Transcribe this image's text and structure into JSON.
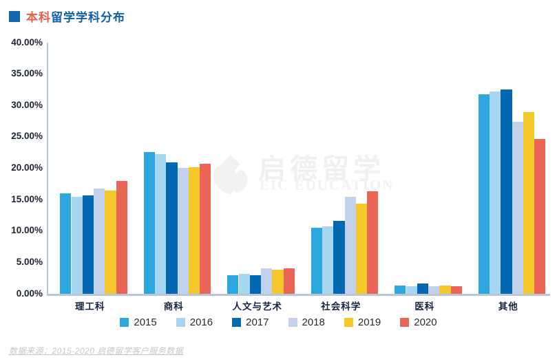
{
  "title": {
    "highlight": "本科",
    "rest": "留学学科分布",
    "highlight_color": "#E7604E",
    "rest_color": "#0E61A9",
    "square_color": "#1565B0"
  },
  "colors": {
    "axis_line": "#b5c8da",
    "watermark": "#f1f1f1",
    "ytick_text": "#1c2430",
    "xlabel_text": "#16233f"
  },
  "chart_data": {
    "type": "bar",
    "title": "本科留学学科分布",
    "categories": [
      "理工科",
      "商科",
      "人文与艺术",
      "社会科学",
      "医科",
      "其他"
    ],
    "series": [
      {
        "name": "2015",
        "color": "#2EA7DF",
        "values": [
          16.0,
          22.6,
          3.0,
          10.5,
          1.3,
          31.8
        ]
      },
      {
        "name": "2016",
        "color": "#A7D6F1",
        "values": [
          15.5,
          22.3,
          3.2,
          10.7,
          1.2,
          32.2
        ]
      },
      {
        "name": "2017",
        "color": "#0467B2",
        "values": [
          15.7,
          20.9,
          3.0,
          11.6,
          1.6,
          32.6
        ]
      },
      {
        "name": "2018",
        "color": "#C3D2EC",
        "values": [
          16.8,
          20.1,
          4.1,
          15.5,
          1.2,
          27.4
        ]
      },
      {
        "name": "2019",
        "color": "#F4C82A",
        "values": [
          16.4,
          20.2,
          3.8,
          14.4,
          1.3,
          28.9
        ]
      },
      {
        "name": "2020",
        "color": "#EB6557",
        "values": [
          18.0,
          20.7,
          4.1,
          16.3,
          1.2,
          24.7
        ]
      }
    ],
    "ylim": [
      0,
      40
    ],
    "ytick_step": 5,
    "yticks": [
      "40.00%",
      "35.00%",
      "30.00%",
      "25.00%",
      "20.00%",
      "15.00%",
      "10.00%",
      "5.00%",
      "0.00%"
    ],
    "xlabel": "",
    "ylabel": "",
    "grid": false,
    "legend_position": "bottom"
  },
  "watermark": {
    "cn": "启德留学",
    "en": "EIC EDUCATION"
  },
  "footer": {
    "source": "数据来源：2015-2020 启德留学客户服务数据"
  }
}
